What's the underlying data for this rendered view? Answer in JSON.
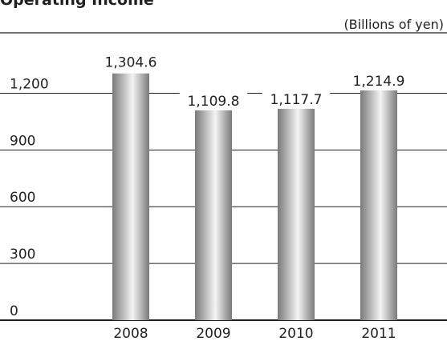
{
  "chart_data": {
    "type": "bar",
    "title": "Operating Income",
    "unit_label": "(Billions of yen)",
    "categories": [
      "2008",
      "2009",
      "2010",
      "2011"
    ],
    "values": [
      1304.6,
      1109.8,
      1117.7,
      1214.9
    ],
    "value_labels": [
      "1,304.6",
      "1,109.8",
      "1,117.7",
      "1,214.9"
    ],
    "yticks": [
      0,
      300,
      600,
      900,
      1200
    ],
    "ytick_labels": [
      "0",
      "300",
      "600",
      "900",
      "1,200"
    ],
    "ylim": [
      0,
      1400
    ],
    "grid": true,
    "xlabel": "",
    "ylabel": "",
    "colors": {
      "bar_dark": "#7a7a7a",
      "bar_light": "#f4f4f4",
      "grid": "#231f20",
      "text": "#231f20"
    }
  }
}
